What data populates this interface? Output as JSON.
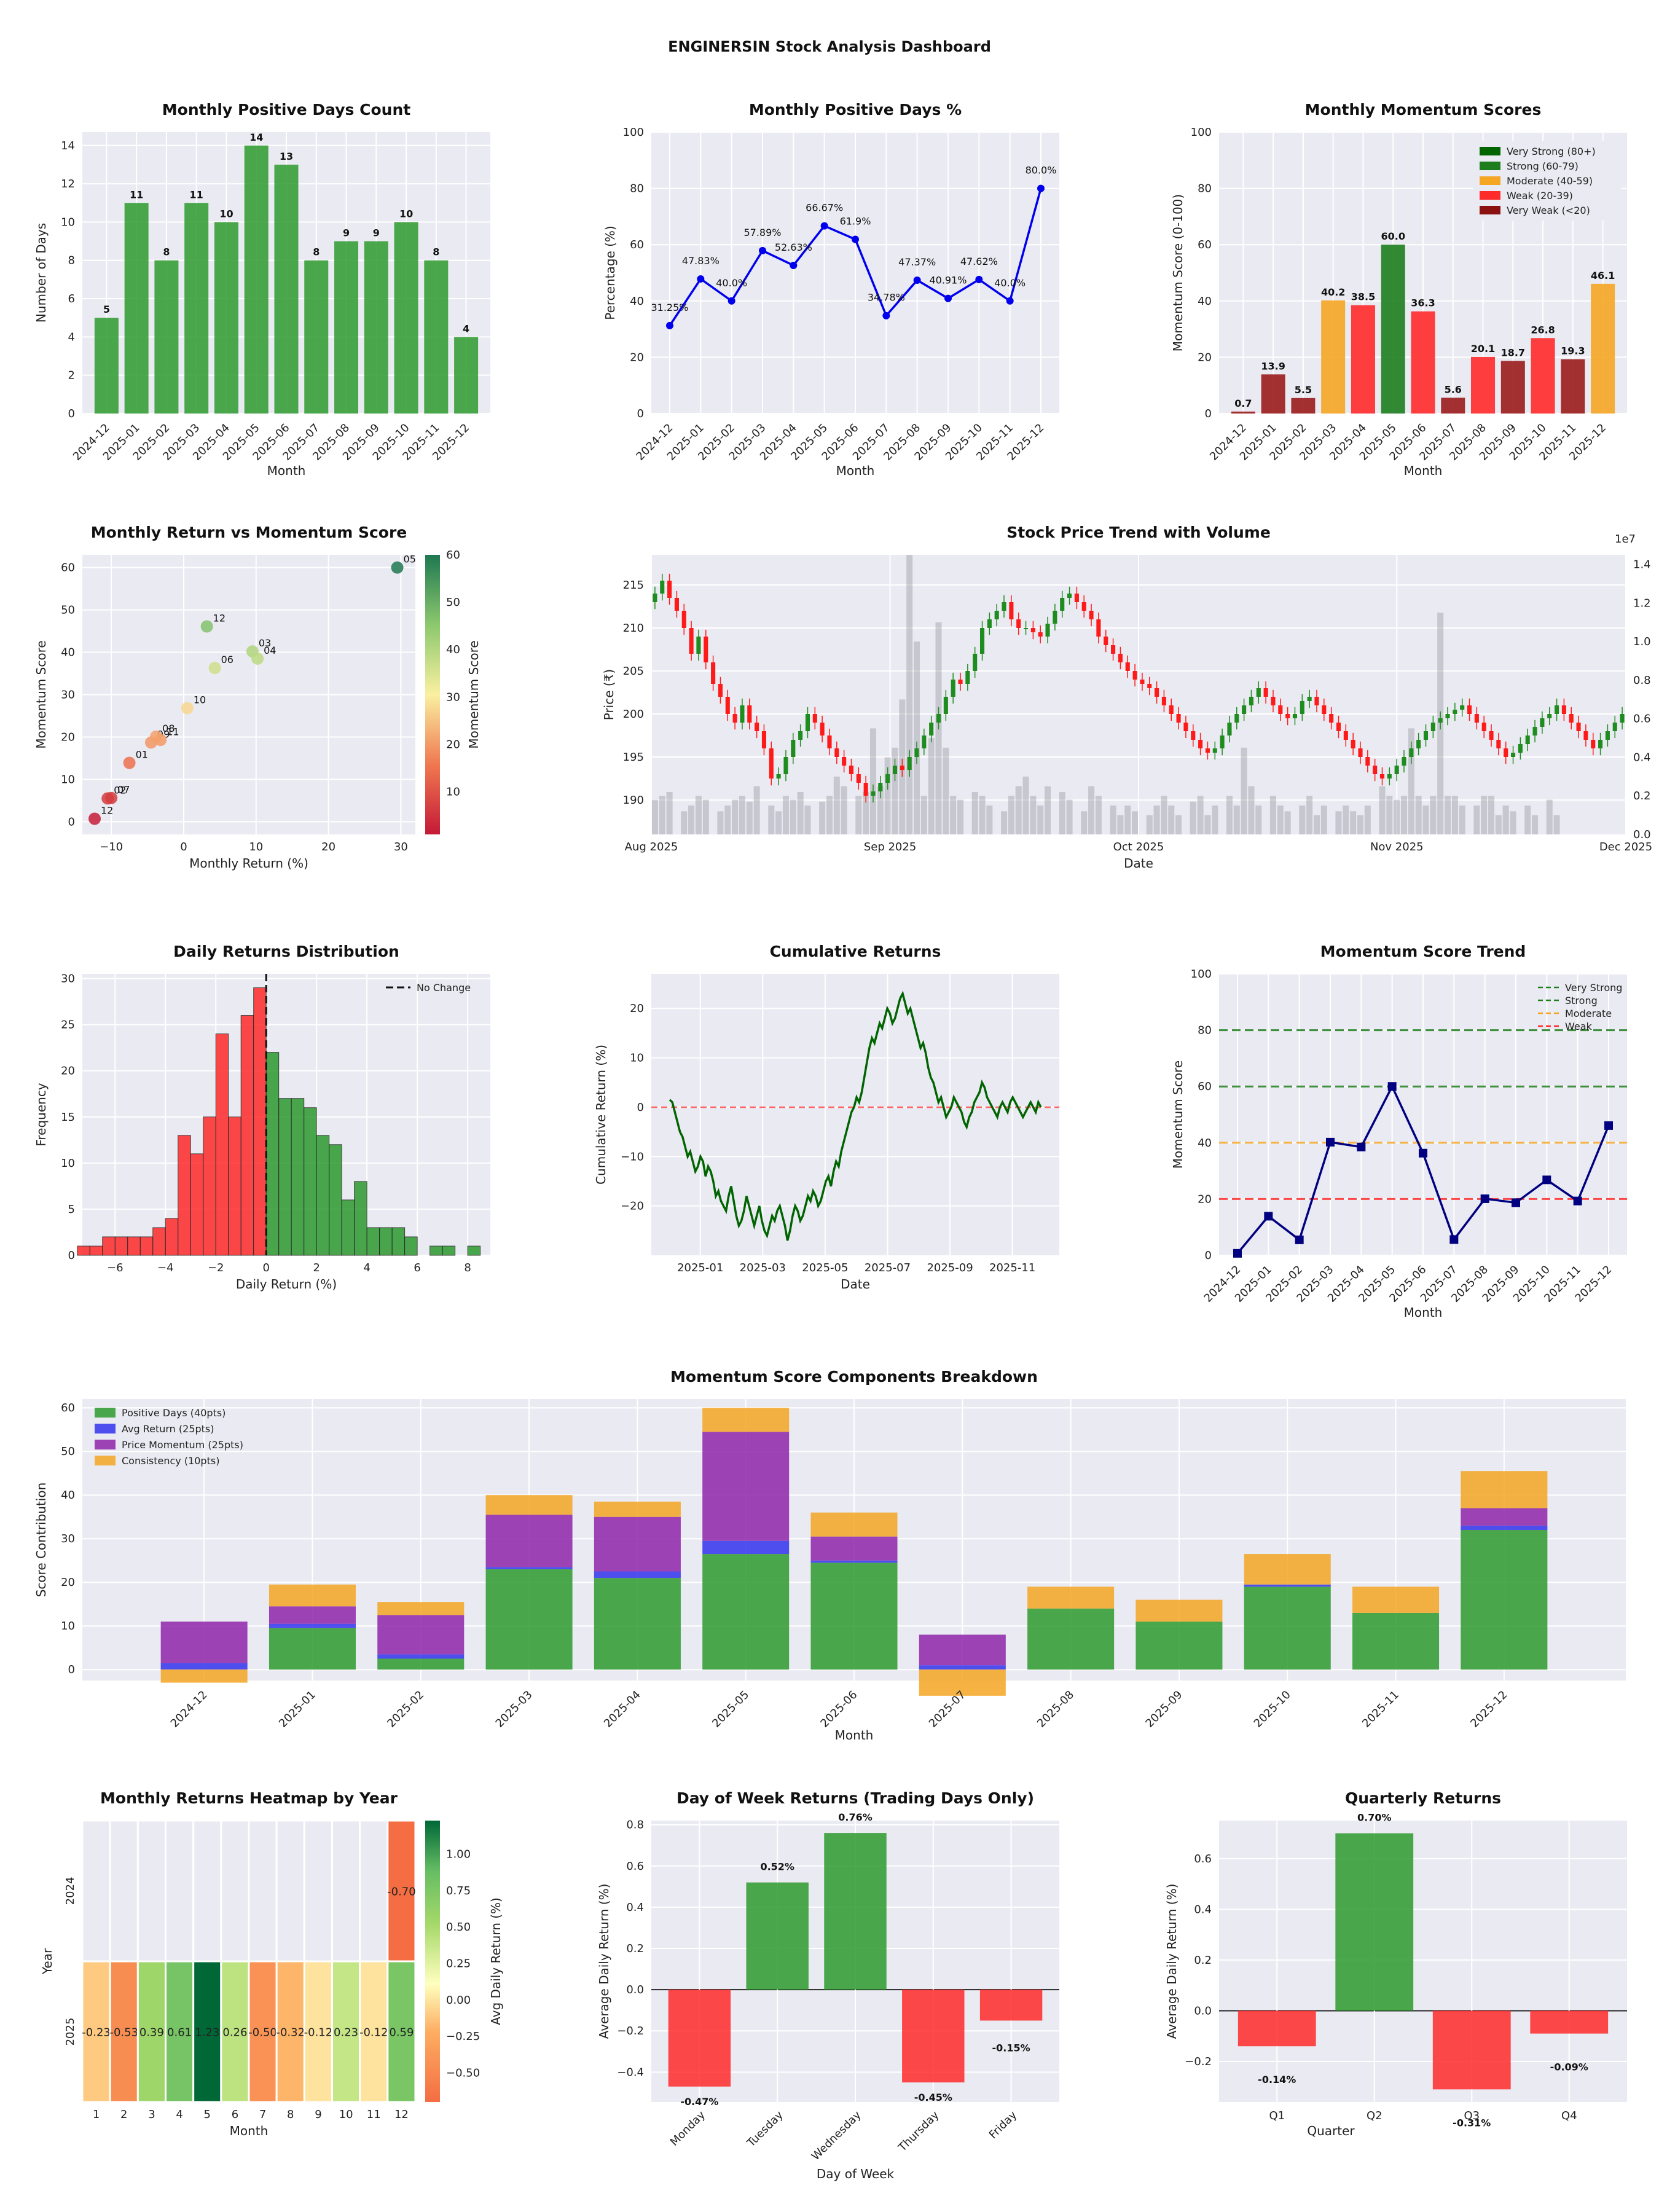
{
  "title": "ENGINERSIN Stock Analysis Dashboard",
  "colors": {
    "green": "#2e9a2e",
    "red": "#ff2a2a",
    "darkred": "#9b1c1c",
    "orange": "#f5a623",
    "darkgreen": "#1e7e1e",
    "blue": "#0000ee",
    "navy": "#000080",
    "purple": "#8e24aa",
    "cumgreen": "#006400",
    "panel": "#eaeaf2",
    "gray": "#b7b7bb"
  },
  "months": [
    "2024-12",
    "2025-01",
    "2025-02",
    "2025-03",
    "2025-04",
    "2025-05",
    "2025-06",
    "2025-07",
    "2025-08",
    "2025-09",
    "2025-10",
    "2025-11",
    "2025-12"
  ],
  "chart_data": [
    {
      "id": "pos_count",
      "type": "bar",
      "title": "Monthly Positive Days Count",
      "xlabel": "Month",
      "ylabel": "Number of Days",
      "ylim": [
        0,
        14.7
      ],
      "yticks": [
        0,
        2,
        4,
        6,
        8,
        10,
        12,
        14
      ],
      "values": [
        5,
        11,
        8,
        11,
        10,
        14,
        13,
        8,
        9,
        9,
        10,
        8,
        4
      ],
      "labels": [
        "5",
        "11",
        "8",
        "11",
        "10",
        "14",
        "13",
        "8",
        "9",
        "9",
        "10",
        "8",
        "4"
      ]
    },
    {
      "id": "pos_pct",
      "type": "line",
      "title": "Monthly Positive Days %",
      "xlabel": "Month",
      "ylabel": "Percentage (%)",
      "ylim": [
        0,
        100
      ],
      "yticks": [
        0,
        20,
        40,
        60,
        80,
        100
      ],
      "values": [
        31.25,
        47.83,
        40.0,
        57.89,
        52.63,
        66.67,
        61.9,
        34.78,
        47.37,
        40.91,
        47.62,
        40.0,
        80.0
      ],
      "labels": [
        "31.25%",
        "47.83%",
        "40.0%",
        "57.89%",
        "52.63%",
        "66.67%",
        "61.9%",
        "34.78%",
        "47.37%",
        "40.91%",
        "47.62%",
        "40.0%",
        "80.0%"
      ]
    },
    {
      "id": "momentum",
      "type": "bar",
      "title": "Monthly Momentum Scores",
      "xlabel": "Month",
      "ylabel": "Momentum Score (0-100)",
      "ylim": [
        0,
        100
      ],
      "yticks": [
        0,
        20,
        40,
        60,
        80,
        100
      ],
      "values": [
        0.7,
        13.9,
        5.5,
        40.2,
        38.5,
        60.0,
        36.3,
        5.6,
        20.1,
        18.7,
        26.8,
        19.3,
        46.1
      ],
      "labels": [
        "0.7",
        "13.9",
        "5.5",
        "40.2",
        "38.5",
        "60.0",
        "36.3",
        "5.6",
        "20.1",
        "18.7",
        "26.8",
        "19.3",
        "46.1"
      ],
      "legend": [
        {
          "name": "Very Strong (80+)",
          "color": "#006400"
        },
        {
          "name": "Strong (60-79)",
          "color": "#1e7e1e"
        },
        {
          "name": "Moderate (40-59)",
          "color": "#f5a623"
        },
        {
          "name": "Weak (20-39)",
          "color": "#ff2a2a"
        },
        {
          "name": "Very Weak (<20)",
          "color": "#8b1010"
        }
      ]
    },
    {
      "id": "scatter",
      "type": "scatter",
      "title": "Monthly Return vs Momentum Score",
      "xlabel": "Monthly Return (%)",
      "ylabel": "Momentum Score",
      "xlim": [
        -14,
        32
      ],
      "ylim": [
        -3,
        63
      ],
      "xticks": [
        -10,
        0,
        10,
        20,
        30
      ],
      "yticks": [
        0,
        10,
        20,
        30,
        40,
        50,
        60
      ],
      "colorbar_label": "Momentum Score",
      "colorbar_ticks": [
        10,
        20,
        30,
        40,
        50,
        60
      ],
      "points": [
        {
          "x": -12.3,
          "y": 0.7,
          "label": "12"
        },
        {
          "x": -10.5,
          "y": 5.5,
          "label": "02"
        },
        {
          "x": -10.0,
          "y": 5.6,
          "label": "07"
        },
        {
          "x": -7.5,
          "y": 13.9,
          "label": "01"
        },
        {
          "x": -4.5,
          "y": 18.7,
          "label": "09"
        },
        {
          "x": -3.2,
          "y": 19.3,
          "label": "11"
        },
        {
          "x": -3.8,
          "y": 20.1,
          "label": "08"
        },
        {
          "x": 0.5,
          "y": 26.8,
          "label": "10"
        },
        {
          "x": 3.2,
          "y": 46.1,
          "label": "12"
        },
        {
          "x": 4.3,
          "y": 36.3,
          "label": "06"
        },
        {
          "x": 9.5,
          "y": 40.2,
          "label": "03"
        },
        {
          "x": 10.2,
          "y": 38.5,
          "label": "04"
        },
        {
          "x": 29.5,
          "y": 60.0,
          "label": "05"
        }
      ]
    },
    {
      "id": "price",
      "type": "candlestick",
      "title": "Stock Price Trend with Volume",
      "xlabel": "Date",
      "ylabel": "Price (₹)",
      "ylim": [
        186,
        218.5
      ],
      "yticks": [
        190,
        195,
        200,
        205,
        210,
        215
      ],
      "volume_ylim": [
        0,
        1.45
      ],
      "volume_yticks": [
        "0.0",
        "0.2",
        "0.4",
        "0.6",
        "0.8",
        "1.0",
        "1.2",
        "1.4"
      ],
      "volume_multiplier": "1e7",
      "xticks": [
        "Aug 2025",
        "Sep 2025",
        "Oct 2025",
        "Nov 2025",
        "Dec 2025"
      ],
      "closes": [
        214,
        215.5,
        213.5,
        212,
        210,
        207,
        209,
        206,
        203.5,
        202,
        200,
        199,
        201,
        199,
        198,
        196,
        192.5,
        193,
        195,
        197,
        198,
        200,
        199,
        197.5,
        196,
        195,
        194,
        193,
        192,
        190.5,
        191,
        192,
        193,
        194,
        193.5,
        195,
        196,
        197.5,
        199,
        200,
        202,
        204,
        203.5,
        205,
        207,
        210,
        211,
        212,
        213,
        211,
        210,
        210,
        209.5,
        209,
        210.5,
        212,
        213.5,
        214,
        213,
        212,
        211,
        209,
        208,
        207,
        206,
        205,
        204,
        203.5,
        203,
        202,
        201,
        200,
        199,
        198,
        197,
        196,
        195.5,
        196,
        197.5,
        199,
        200,
        201,
        202,
        203,
        202,
        201,
        200,
        199.5,
        200,
        201.5,
        202,
        201,
        200,
        199,
        198,
        197,
        196,
        195,
        194,
        193,
        192.5,
        193,
        194,
        195,
        196,
        197,
        198,
        199,
        199.5,
        200,
        200.5,
        201,
        200,
        199,
        198,
        197,
        196,
        195,
        195.5,
        196.5,
        197.5,
        198.5,
        199.5,
        200,
        201,
        200,
        199,
        198,
        197,
        196,
        197,
        198,
        199,
        200
      ],
      "volumes": [
        0.18,
        0.2,
        0.22,
        0.0,
        0.12,
        0.15,
        0.2,
        0.18,
        0.0,
        0.12,
        0.15,
        0.18,
        0.2,
        0.17,
        0.25,
        0.0,
        0.15,
        0.12,
        0.2,
        0.18,
        0.22,
        0.15,
        0.0,
        0.17,
        0.2,
        0.3,
        0.25,
        0.0,
        0.2,
        0.22,
        0.55,
        0.25,
        0.4,
        0.45,
        0.7,
        1.45,
        1.0,
        0.2,
        0.5,
        1.1,
        0.45,
        0.2,
        0.18,
        0.0,
        0.22,
        0.2,
        0.15,
        0.0,
        0.12,
        0.2,
        0.25,
        0.3,
        0.2,
        0.15,
        0.25,
        0.0,
        0.22,
        0.18,
        0.0,
        0.12,
        0.25,
        0.2,
        0.0,
        0.15,
        0.1,
        0.15,
        0.12,
        0.0,
        0.1,
        0.15,
        0.2,
        0.15,
        0.1,
        0.0,
        0.17,
        0.2,
        0.1,
        0.15,
        0.0,
        0.2,
        0.15,
        0.45,
        0.25,
        0.15,
        0.0,
        0.2,
        0.15,
        0.12,
        0.0,
        0.15,
        0.2,
        0.1,
        0.15,
        0.0,
        0.12,
        0.15,
        0.12,
        0.1,
        0.15,
        0.0,
        0.25,
        0.2,
        0.18,
        0.2,
        0.55,
        0.2,
        0.15,
        0.2,
        1.15,
        0.2,
        0.2,
        0.15,
        0.0,
        0.15,
        0.2,
        0.2,
        0.1,
        0.15,
        0.12,
        0.0,
        0.15,
        0.1,
        0.0,
        0.18,
        0.1
      ]
    },
    {
      "id": "hist",
      "type": "histogram",
      "title": "Daily Returns Distribution",
      "xlabel": "Daily Return (%)",
      "ylabel": "Frequency",
      "xlim": [
        -7.3,
        8.9
      ],
      "ylim": [
        0,
        30.5
      ],
      "xticks": [
        -6,
        -4,
        -2,
        0,
        2,
        4,
        6,
        8
      ],
      "xtick_labels": [
        "−6",
        "−4",
        "−2",
        "0",
        "2",
        "4",
        "6",
        "8"
      ],
      "yticks": [
        0,
        5,
        10,
        15,
        20,
        25,
        30
      ],
      "bin_width": 0.5,
      "neg_bins": [
        [
          -7.0,
          1
        ],
        [
          -6.5,
          1
        ],
        [
          -6.0,
          2
        ],
        [
          -5.5,
          2
        ],
        [
          -5.0,
          2
        ],
        [
          -4.5,
          2
        ],
        [
          -4.0,
          3
        ],
        [
          -3.5,
          4
        ],
        [
          -3.0,
          13
        ],
        [
          -2.5,
          11
        ],
        [
          -2.0,
          15
        ],
        [
          -1.5,
          24
        ],
        [
          -1.0,
          15
        ],
        [
          -0.5,
          26
        ],
        [
          0.0,
          29
        ]
      ],
      "pos_bins": [
        [
          0.0,
          22
        ],
        [
          0.5,
          17
        ],
        [
          1.0,
          17
        ],
        [
          1.5,
          16
        ],
        [
          2.0,
          13
        ],
        [
          2.5,
          12
        ],
        [
          3.0,
          6
        ],
        [
          3.5,
          8
        ],
        [
          4.0,
          3
        ],
        [
          4.5,
          3
        ],
        [
          5.0,
          3
        ],
        [
          5.5,
          2
        ],
        [
          6.5,
          1
        ],
        [
          7.0,
          1
        ],
        [
          8.0,
          1
        ]
      ],
      "legend": "No Change"
    },
    {
      "id": "cum",
      "type": "line",
      "title": "Cumulative Returns",
      "xlabel": "Date",
      "ylabel": "Cumulative Return (%)",
      "ylim": [
        -30,
        27
      ],
      "yticks": [
        -20,
        -10,
        0,
        10,
        20
      ],
      "xticks": [
        "2025-01",
        "2025-03",
        "2025-05",
        "2025-07",
        "2025-09",
        "2025-11"
      ],
      "values": [
        1.5,
        1,
        -1,
        -3,
        -5,
        -6,
        -8,
        -10,
        -9,
        -11,
        -13,
        -12,
        -10,
        -11,
        -14,
        -12,
        -13,
        -15,
        -18,
        -17,
        -19,
        -20,
        -21,
        -18,
        -16,
        -19,
        -22,
        -24,
        -23,
        -21,
        -18,
        -20,
        -22,
        -24,
        -22,
        -20,
        -23,
        -25,
        -26,
        -24,
        -22,
        -23,
        -21,
        -20,
        -22,
        -24,
        -27,
        -25,
        -22,
        -20,
        -21,
        -23,
        -22,
        -20,
        -18,
        -19,
        -17,
        -18,
        -20,
        -19,
        -17,
        -15,
        -14,
        -16,
        -13,
        -11,
        -12,
        -9,
        -7,
        -5,
        -3,
        -1,
        0,
        2,
        1,
        3,
        6,
        9,
        12,
        14,
        13,
        15,
        17,
        16,
        18,
        20,
        19,
        17,
        18,
        20,
        22,
        23,
        21,
        19,
        20,
        18,
        16,
        14,
        12,
        13,
        11,
        8,
        6,
        5,
        3,
        1,
        2,
        0,
        -2,
        -1,
        0,
        2,
        1,
        0,
        -1,
        -3,
        -4,
        -2,
        -1,
        1,
        2,
        3,
        5,
        4,
        2,
        1,
        0,
        -1,
        -2,
        0,
        1,
        0,
        -1,
        1,
        2,
        1,
        0,
        -1,
        -2,
        -1,
        0,
        1,
        0,
        -1,
        1,
        0
      ]
    },
    {
      "id": "mom_trend",
      "type": "line",
      "title": "Momentum Score Trend",
      "xlabel": "Month",
      "ylabel": "Momentum Score",
      "ylim": [
        0,
        100
      ],
      "yticks": [
        0,
        20,
        40,
        60,
        80,
        100
      ],
      "values": [
        0.7,
        13.9,
        5.5,
        40.2,
        38.5,
        60.0,
        36.3,
        5.6,
        20.1,
        18.7,
        26.8,
        19.3,
        46.1
      ],
      "thresholds": [
        {
          "name": "Very Strong",
          "y": 80,
          "color": "#1e7e1e"
        },
        {
          "name": "Strong",
          "y": 60,
          "color": "#1e7e1e"
        },
        {
          "name": "Moderate",
          "y": 40,
          "color": "#f5a623"
        },
        {
          "name": "Weak",
          "y": 20,
          "color": "#ff2a2a"
        }
      ]
    },
    {
      "id": "components",
      "type": "stacked-bar",
      "title": "Momentum Score Components Breakdown",
      "xlabel": "Month",
      "ylabel": "Score Contribution",
      "ylim": [
        -2.5,
        62
      ],
      "yticks": [
        0,
        10,
        20,
        30,
        40,
        50,
        60
      ],
      "series": [
        {
          "name": "Positive Days (40pts)",
          "color": "#2e9a2e",
          "values": [
            0,
            9.5,
            2.5,
            23,
            21,
            26.5,
            24.5,
            0,
            14,
            11,
            19,
            13,
            32
          ]
        },
        {
          "name": "Avg Return (25pts)",
          "color": "#3333ee",
          "values": [
            1.5,
            1,
            1,
            0.5,
            1.5,
            3,
            0.5,
            1,
            0,
            0,
            0.5,
            0,
            1
          ]
        },
        {
          "name": "Price Momentum (25pts)",
          "color": "#8e24aa",
          "values": [
            9.5,
            4,
            9,
            12,
            12.5,
            25,
            5.5,
            7,
            0,
            0,
            0,
            0,
            4
          ]
        },
        {
          "name": "Consistency (10pts)",
          "color": "#f5a623",
          "values": [
            -3,
            5,
            3,
            4.5,
            3.5,
            5.5,
            5.5,
            -6,
            5,
            5,
            7,
            6,
            8.5
          ]
        }
      ]
    },
    {
      "id": "heatmap",
      "type": "heatmap",
      "title": "Monthly Returns Heatmap by Year",
      "xlabel": "Month",
      "ylabel": "Year",
      "rows": [
        "2024",
        "2025"
      ],
      "cols": [
        "1",
        "2",
        "3",
        "4",
        "5",
        "6",
        "7",
        "8",
        "9",
        "10",
        "11",
        "12"
      ],
      "values": [
        [
          null,
          null,
          null,
          null,
          null,
          null,
          null,
          null,
          null,
          null,
          null,
          -0.7
        ],
        [
          -0.23,
          -0.53,
          0.39,
          0.61,
          1.23,
          0.26,
          -0.5,
          -0.32,
          -0.12,
          0.23,
          -0.12,
          0.59
        ]
      ],
      "labels": [
        [
          "",
          "",
          "",
          "",
          "",
          "",
          "",
          "",
          "",
          "",
          "",
          "-0.70"
        ],
        [
          "-0.23",
          "-0.53",
          "0.39",
          "0.61",
          "1.23",
          "0.26",
          "-0.50",
          "-0.32",
          "-0.12",
          "0.23",
          "-0.12",
          "0.59"
        ]
      ],
      "colorbar_label": "Avg Daily Return (%)",
      "colorbar_ticks": [
        "1.00",
        "0.75",
        "0.50",
        "0.25",
        "0.00",
        "−0.25",
        "−0.50"
      ],
      "colorbar_values": [
        1.0,
        0.75,
        0.5,
        0.25,
        0.0,
        -0.25,
        -0.5
      ]
    },
    {
      "id": "dow",
      "type": "bar",
      "title": "Day of Week Returns (Trading Days Only)",
      "xlabel": "Day of Week",
      "ylabel": "Average Daily Return (%)",
      "ylim": [
        -0.545,
        0.82
      ],
      "yticks": [
        -0.4,
        -0.2,
        0.0,
        0.2,
        0.4,
        0.6,
        0.8
      ],
      "ytick_labels": [
        "−0.4",
        "−0.2",
        "0.0",
        "0.2",
        "0.4",
        "0.6",
        "0.8"
      ],
      "categories": [
        "Monday",
        "Tuesday",
        "Wednesday",
        "Thursday",
        "Friday"
      ],
      "values": [
        -0.47,
        0.52,
        0.76,
        -0.45,
        -0.15
      ],
      "labels": [
        "-0.47%",
        "0.52%",
        "0.76%",
        "-0.45%",
        "-0.15%"
      ]
    },
    {
      "id": "quarterly",
      "type": "bar",
      "title": "Quarterly Returns",
      "xlabel": "Quarter",
      "ylabel": "Average Daily Return (%)",
      "ylim": [
        -0.36,
        0.75
      ],
      "yticks": [
        -0.2,
        0.0,
        0.2,
        0.4,
        0.6
      ],
      "ytick_labels": [
        "−0.2",
        "0.0",
        "0.2",
        "0.4",
        "0.6"
      ],
      "categories": [
        "Q1",
        "Q2",
        "Q3",
        "Q4"
      ],
      "values": [
        -0.14,
        0.7,
        -0.31,
        -0.09
      ],
      "labels": [
        "-0.14%",
        "0.70%",
        "-0.31%",
        "-0.09%"
      ]
    }
  ]
}
